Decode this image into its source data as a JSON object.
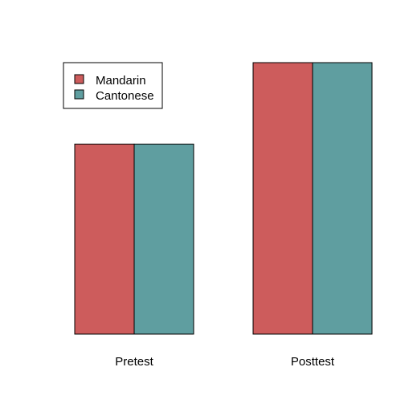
{
  "chart_data": {
    "type": "bar",
    "categories": [
      "Pretest",
      "Posttest"
    ],
    "series": [
      {
        "name": "Mandarin",
        "values": [
          0.7,
          1.0
        ],
        "color": "#cd5c5c"
      },
      {
        "name": "Cantonese",
        "values": [
          0.7,
          1.0
        ],
        "color": "#5f9ea0"
      }
    ],
    "ylim": [
      0,
      1.0
    ],
    "grid": false,
    "legend_position": "top-left",
    "title": "",
    "xlabel": "",
    "ylabel": ""
  }
}
